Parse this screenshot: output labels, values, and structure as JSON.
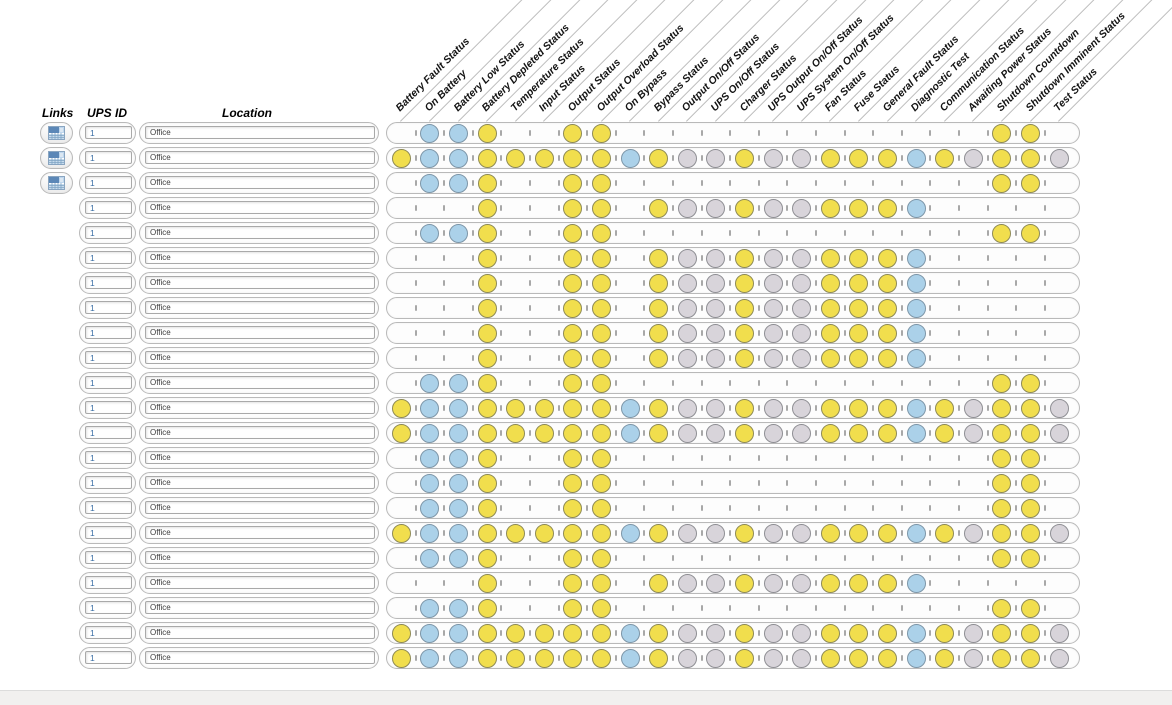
{
  "headers": {
    "links": "Links",
    "ups_id": "UPS ID",
    "location": "Location"
  },
  "columns": [
    "Battery Fault Status",
    "On Battery",
    "Battery Low Status",
    "Battery Depleted Status",
    "Temperature Status",
    "Input Status",
    "Output Status",
    "Output Overload Status",
    "On Bypass",
    "Bypass Status",
    "Output On/Off Status",
    "UPS On/Off Status",
    "Charger Status",
    "UPS Output On/Off Status",
    "UPS System On/Off Status",
    "Fan Status",
    "Fuse Status",
    "General Fault Status",
    "Diagnostic Test",
    "Communication Status",
    "Awaiting Power Status",
    "Shutdown Countdown",
    "Shutdown Imminent Status",
    "Test Status"
  ],
  "status_colors": {
    "y": "#F1DE4D",
    "b": "#ABD1E9",
    "g": "#D8D4DA",
    "": "none"
  },
  "icons": {
    "links_button": "report-table-icon"
  },
  "rows": [
    {
      "has_link": true,
      "ups_id": "1",
      "location": "Office",
      "status": [
        "",
        "b",
        "b",
        "y",
        "",
        "",
        "y",
        "y",
        "",
        "",
        "",
        "",
        "",
        "",
        "",
        "",
        "",
        "",
        "",
        "",
        "",
        "y",
        "y",
        ""
      ]
    },
    {
      "has_link": true,
      "ups_id": "1",
      "location": "Office",
      "status": [
        "y",
        "b",
        "b",
        "y",
        "y",
        "y",
        "y",
        "y",
        "b",
        "y",
        "g",
        "g",
        "y",
        "g",
        "g",
        "y",
        "y",
        "y",
        "b",
        "y",
        "g",
        "y",
        "y",
        "g"
      ]
    },
    {
      "has_link": true,
      "ups_id": "1",
      "location": "Office",
      "status": [
        "",
        "b",
        "b",
        "y",
        "",
        "",
        "y",
        "y",
        "",
        "",
        "",
        "",
        "",
        "",
        "",
        "",
        "",
        "",
        "",
        "",
        "",
        "y",
        "y",
        ""
      ]
    },
    {
      "has_link": false,
      "ups_id": "1",
      "location": "Office",
      "status": [
        "",
        "",
        "",
        "y",
        "",
        "",
        "y",
        "y",
        "",
        "y",
        "g",
        "g",
        "y",
        "g",
        "g",
        "y",
        "y",
        "y",
        "b",
        "",
        "",
        "",
        "",
        ""
      ]
    },
    {
      "has_link": false,
      "ups_id": "1",
      "location": "Office",
      "status": [
        "",
        "b",
        "b",
        "y",
        "",
        "",
        "y",
        "y",
        "",
        "",
        "",
        "",
        "",
        "",
        "",
        "",
        "",
        "",
        "",
        "",
        "",
        "y",
        "y",
        ""
      ]
    },
    {
      "has_link": false,
      "ups_id": "1",
      "location": "Office",
      "status": [
        "",
        "",
        "",
        "y",
        "",
        "",
        "y",
        "y",
        "",
        "y",
        "g",
        "g",
        "y",
        "g",
        "g",
        "y",
        "y",
        "y",
        "b",
        "",
        "",
        "",
        "",
        ""
      ]
    },
    {
      "has_link": false,
      "ups_id": "1",
      "location": "Office",
      "status": [
        "",
        "",
        "",
        "y",
        "",
        "",
        "y",
        "y",
        "",
        "y",
        "g",
        "g",
        "y",
        "g",
        "g",
        "y",
        "y",
        "y",
        "b",
        "",
        "",
        "",
        "",
        ""
      ]
    },
    {
      "has_link": false,
      "ups_id": "1",
      "location": "Office",
      "status": [
        "",
        "",
        "",
        "y",
        "",
        "",
        "y",
        "y",
        "",
        "y",
        "g",
        "g",
        "y",
        "g",
        "g",
        "y",
        "y",
        "y",
        "b",
        "",
        "",
        "",
        "",
        ""
      ]
    },
    {
      "has_link": false,
      "ups_id": "1",
      "location": "Office",
      "status": [
        "",
        "",
        "",
        "y",
        "",
        "",
        "y",
        "y",
        "",
        "y",
        "g",
        "g",
        "y",
        "g",
        "g",
        "y",
        "y",
        "y",
        "b",
        "",
        "",
        "",
        "",
        ""
      ]
    },
    {
      "has_link": false,
      "ups_id": "1",
      "location": "Office",
      "status": [
        "",
        "",
        "",
        "y",
        "",
        "",
        "y",
        "y",
        "",
        "y",
        "g",
        "g",
        "y",
        "g",
        "g",
        "y",
        "y",
        "y",
        "b",
        "",
        "",
        "",
        "",
        ""
      ]
    },
    {
      "has_link": false,
      "ups_id": "1",
      "location": "Office",
      "status": [
        "",
        "b",
        "b",
        "y",
        "",
        "",
        "y",
        "y",
        "",
        "",
        "",
        "",
        "",
        "",
        "",
        "",
        "",
        "",
        "",
        "",
        "",
        "y",
        "y",
        ""
      ]
    },
    {
      "has_link": false,
      "ups_id": "1",
      "location": "Office",
      "status": [
        "y",
        "b",
        "b",
        "y",
        "y",
        "y",
        "y",
        "y",
        "b",
        "y",
        "g",
        "g",
        "y",
        "g",
        "g",
        "y",
        "y",
        "y",
        "b",
        "y",
        "g",
        "y",
        "y",
        "g"
      ]
    },
    {
      "has_link": false,
      "ups_id": "1",
      "location": "Office",
      "status": [
        "y",
        "b",
        "b",
        "y",
        "y",
        "y",
        "y",
        "y",
        "b",
        "y",
        "g",
        "g",
        "y",
        "g",
        "g",
        "y",
        "y",
        "y",
        "b",
        "y",
        "g",
        "y",
        "y",
        "g"
      ]
    },
    {
      "has_link": false,
      "ups_id": "1",
      "location": "Office",
      "status": [
        "",
        "b",
        "b",
        "y",
        "",
        "",
        "y",
        "y",
        "",
        "",
        "",
        "",
        "",
        "",
        "",
        "",
        "",
        "",
        "",
        "",
        "",
        "y",
        "y",
        ""
      ]
    },
    {
      "has_link": false,
      "ups_id": "1",
      "location": "Office",
      "status": [
        "",
        "b",
        "b",
        "y",
        "",
        "",
        "y",
        "y",
        "",
        "",
        "",
        "",
        "",
        "",
        "",
        "",
        "",
        "",
        "",
        "",
        "",
        "y",
        "y",
        ""
      ]
    },
    {
      "has_link": false,
      "ups_id": "1",
      "location": "Office",
      "status": [
        "",
        "b",
        "b",
        "y",
        "",
        "",
        "y",
        "y",
        "",
        "",
        "",
        "",
        "",
        "",
        "",
        "",
        "",
        "",
        "",
        "",
        "",
        "y",
        "y",
        ""
      ]
    },
    {
      "has_link": false,
      "ups_id": "1",
      "location": "Office",
      "status": [
        "y",
        "b",
        "b",
        "y",
        "y",
        "y",
        "y",
        "y",
        "b",
        "y",
        "g",
        "g",
        "y",
        "g",
        "g",
        "y",
        "y",
        "y",
        "b",
        "y",
        "g",
        "y",
        "y",
        "g"
      ]
    },
    {
      "has_link": false,
      "ups_id": "1",
      "location": "Office",
      "status": [
        "",
        "b",
        "b",
        "y",
        "",
        "",
        "y",
        "y",
        "",
        "",
        "",
        "",
        "",
        "",
        "",
        "",
        "",
        "",
        "",
        "",
        "",
        "y",
        "y",
        ""
      ]
    },
    {
      "has_link": false,
      "ups_id": "1",
      "location": "Office",
      "status": [
        "",
        "",
        "",
        "y",
        "",
        "",
        "y",
        "y",
        "",
        "y",
        "g",
        "g",
        "y",
        "g",
        "g",
        "y",
        "y",
        "y",
        "b",
        "",
        "",
        "",
        "",
        ""
      ]
    },
    {
      "has_link": false,
      "ups_id": "1",
      "location": "Office",
      "status": [
        "",
        "b",
        "b",
        "y",
        "",
        "",
        "y",
        "y",
        "",
        "",
        "",
        "",
        "",
        "",
        "",
        "",
        "",
        "",
        "",
        "",
        "",
        "y",
        "y",
        ""
      ]
    },
    {
      "has_link": false,
      "ups_id": "1",
      "location": "Office",
      "status": [
        "y",
        "b",
        "b",
        "y",
        "y",
        "y",
        "y",
        "y",
        "b",
        "y",
        "g",
        "g",
        "y",
        "g",
        "g",
        "y",
        "y",
        "y",
        "b",
        "y",
        "g",
        "y",
        "y",
        "g"
      ]
    },
    {
      "has_link": false,
      "ups_id": "1",
      "location": "Office",
      "status": [
        "y",
        "b",
        "b",
        "y",
        "y",
        "y",
        "y",
        "y",
        "b",
        "y",
        "g",
        "g",
        "y",
        "g",
        "g",
        "y",
        "y",
        "y",
        "b",
        "y",
        "g",
        "y",
        "y",
        "g"
      ]
    }
  ]
}
